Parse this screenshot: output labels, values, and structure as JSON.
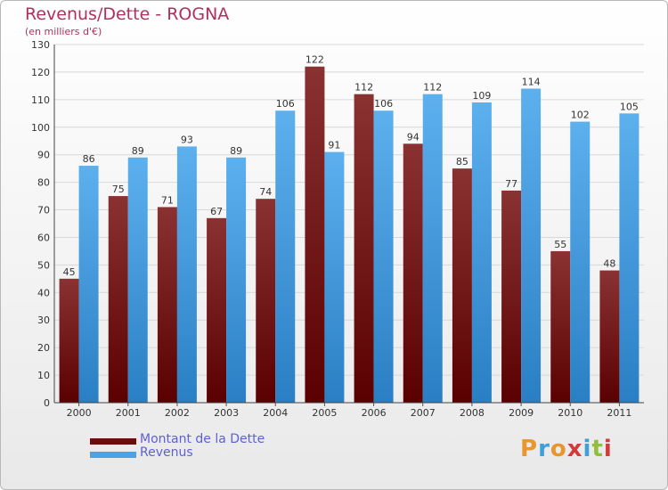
{
  "title": "Revenus/Dette - ROGNA",
  "subtitle": "(en milliers d'€)",
  "logo": {
    "text": "Proxiti",
    "colors": [
      "#e8962e",
      "#3da0d8",
      "#e8962e",
      "#d53a3a",
      "#3da0d8",
      "#8fbf3c",
      "#d53a3a"
    ]
  },
  "legend": [
    {
      "label": "Montant de la Dette",
      "color": "#6b0d0d"
    },
    {
      "label": "Revenus",
      "color": "#4aa3e6"
    }
  ],
  "chart_data": {
    "type": "bar",
    "title": "Revenus/Dette - ROGNA",
    "subtitle": "(en milliers d'€)",
    "categories": [
      "2000",
      "2001",
      "2002",
      "2003",
      "2004",
      "2005",
      "2006",
      "2007",
      "2008",
      "2009",
      "2010",
      "2011"
    ],
    "series": [
      {
        "name": "Montant de la Dette",
        "color": "#6b0d0d",
        "values": [
          45,
          75,
          71,
          67,
          74,
          122,
          112,
          94,
          85,
          77,
          55,
          48
        ]
      },
      {
        "name": "Revenus",
        "color": "#4aa3e6",
        "values": [
          86,
          89,
          93,
          89,
          106,
          91,
          106,
          112,
          109,
          114,
          102,
          105
        ]
      }
    ],
    "ylim": [
      0,
      130
    ],
    "yticks": [
      0,
      10,
      20,
      30,
      40,
      50,
      60,
      70,
      80,
      90,
      100,
      110,
      120,
      130
    ],
    "grid": true,
    "legend_position": "bottom-left"
  }
}
